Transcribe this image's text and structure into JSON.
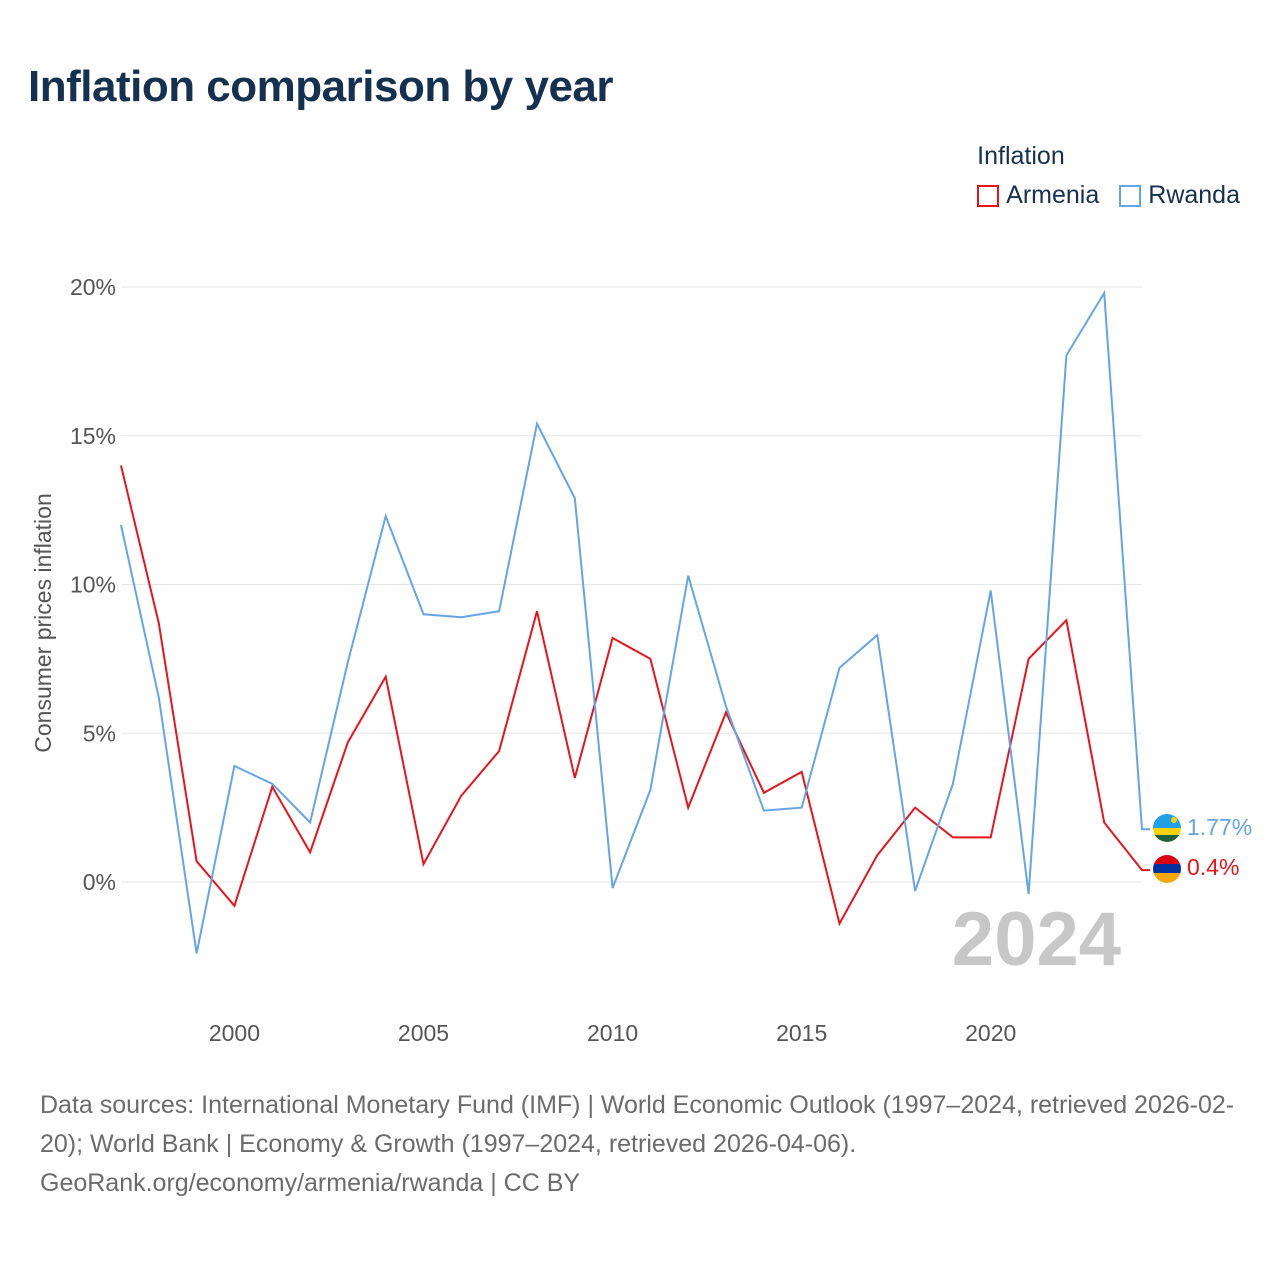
{
  "title": "Inflation comparison by year",
  "legend": {
    "title": "Inflation",
    "items": [
      {
        "label": "Armenia",
        "color": "#e8141c"
      },
      {
        "label": "Rwanda",
        "color": "#63a5e6"
      }
    ]
  },
  "watermark_year": "2024",
  "footer": {
    "sources": "Data sources: International Monetary Fund (IMF) | World Economic Outlook (1997–2024, retrieved 2026-02-20); World Bank | Economy & Growth (1997–2024, retrieved 2026-04-06).",
    "credit": "GeoRank.org/economy/armenia/rwanda | CC BY"
  },
  "chart_data": {
    "type": "line",
    "ylabel": "Consumer prices inflation",
    "xlabel": "",
    "x": [
      1997,
      1998,
      1999,
      2000,
      2001,
      2002,
      2003,
      2004,
      2005,
      2006,
      2007,
      2008,
      2009,
      2010,
      2011,
      2012,
      2013,
      2014,
      2015,
      2016,
      2017,
      2018,
      2019,
      2020,
      2021,
      2022,
      2023,
      2024
    ],
    "xlim": [
      1997,
      2024
    ],
    "ylim": [
      -4.2,
      20
    ],
    "x_ticks": [
      2000,
      2005,
      2010,
      2015,
      2020
    ],
    "x_tick_labels": [
      "2000",
      "2005",
      "2010",
      "2015",
      "2020"
    ],
    "y_ticks": [
      0,
      5,
      10,
      15,
      20
    ],
    "y_tick_labels": [
      "0%",
      "5%",
      "10%",
      "15%",
      "20%"
    ],
    "grid": true,
    "series": [
      {
        "name": "Armenia",
        "color": "#e8141c",
        "values": [
          14.0,
          8.7,
          0.7,
          -0.8,
          3.2,
          1.0,
          4.7,
          6.9,
          0.6,
          2.9,
          4.4,
          9.1,
          3.5,
          8.2,
          7.5,
          2.5,
          5.7,
          3.0,
          3.7,
          -1.4,
          0.9,
          2.5,
          1.5,
          1.5,
          7.5,
          8.8,
          2.0,
          0.4
        ],
        "end_label": "0.4%"
      },
      {
        "name": "Rwanda",
        "color": "#63a5e6",
        "values": [
          12.0,
          6.2,
          -2.4,
          3.9,
          3.3,
          2.0,
          7.4,
          12.3,
          9.0,
          8.9,
          9.1,
          15.4,
          12.9,
          -0.2,
          3.1,
          10.3,
          5.9,
          2.4,
          2.5,
          7.2,
          8.3,
          -0.3,
          3.3,
          9.8,
          -0.4,
          17.7,
          19.8,
          1.77
        ],
        "end_label": "1.77%"
      }
    ]
  }
}
